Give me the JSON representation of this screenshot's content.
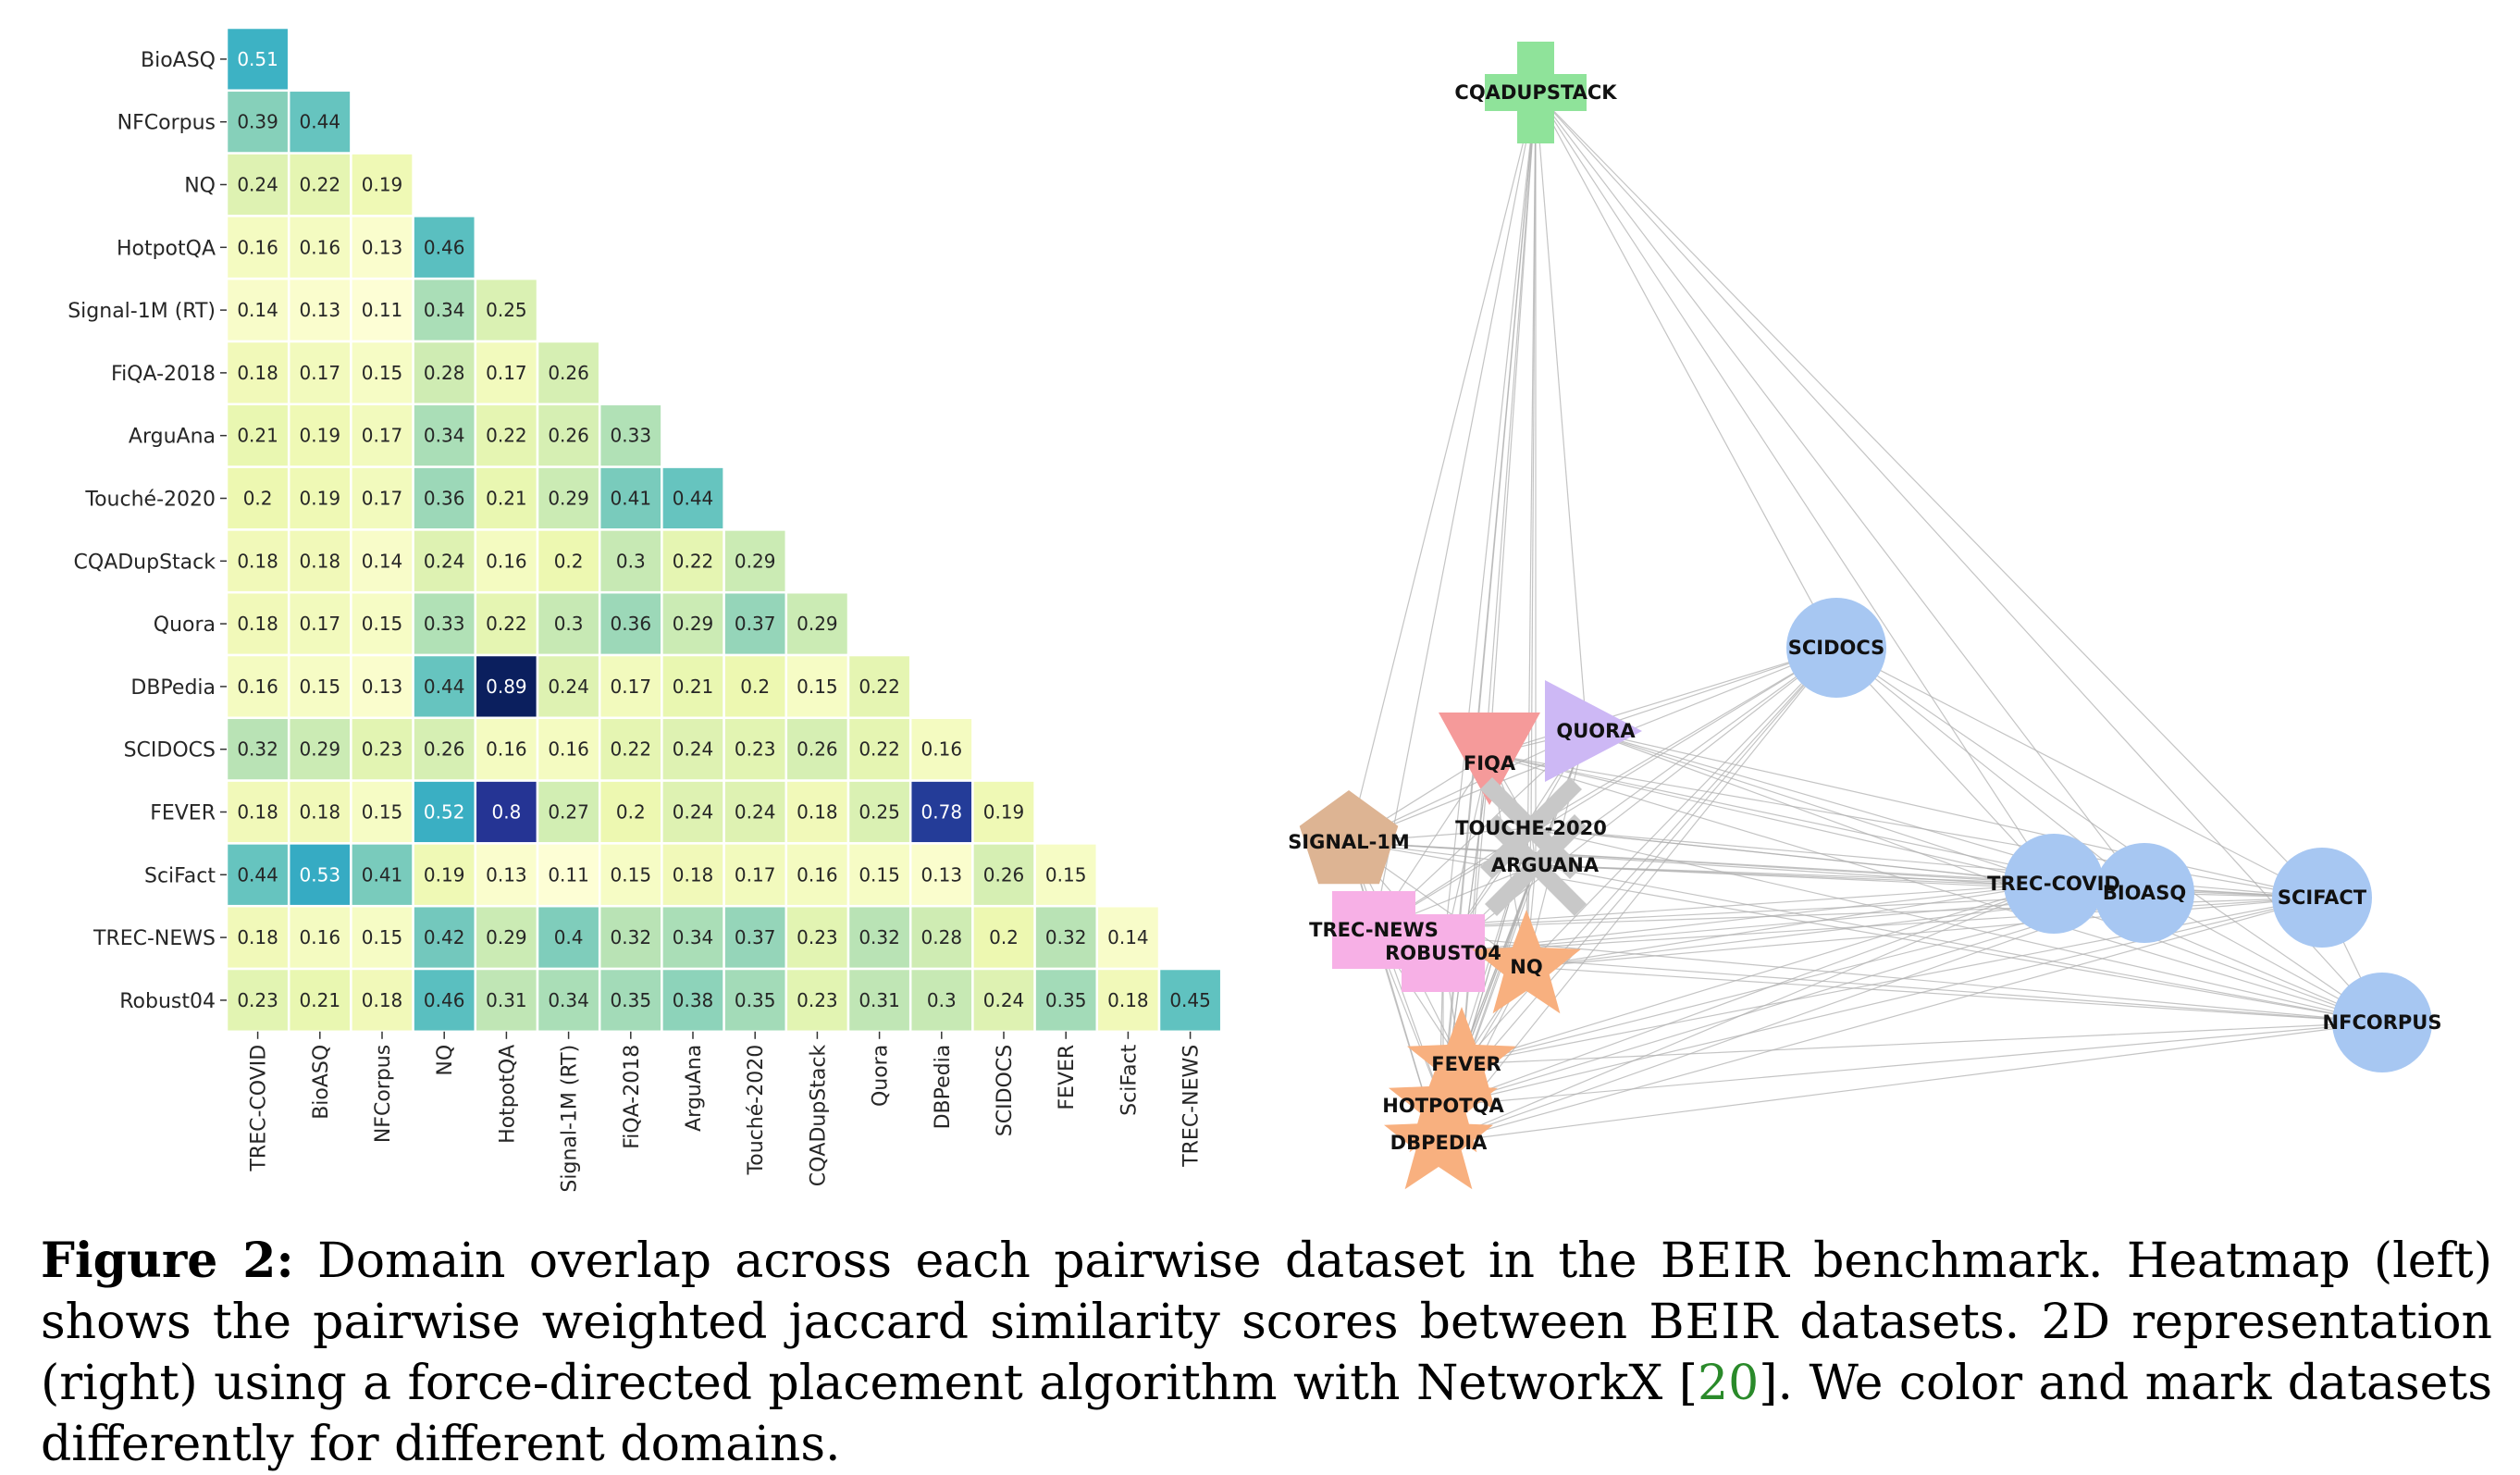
{
  "chart_data": [
    {
      "type": "heatmap",
      "description_type": "lower-triangular heatmap",
      "rows": [
        "BioASQ",
        "NFCorpus",
        "NQ",
        "HotpotQA",
        "Signal-1M (RT)",
        "FiQA-2018",
        "ArguAna",
        "Touché-2020",
        "CQADupStack",
        "Quora",
        "DBPedia",
        "SCIDOCS",
        "FEVER",
        "SciFact",
        "TREC-NEWS",
        "Robust04"
      ],
      "columns": [
        "TREC-COVID",
        "BioASQ",
        "NFCorpus",
        "NQ",
        "HotpotQA",
        "Signal-1M (RT)",
        "FiQA-2018",
        "ArguAna",
        "Touché-2020",
        "CQADupStack",
        "Quora",
        "DBPedia",
        "SCIDOCS",
        "FEVER",
        "SciFact",
        "TREC-NEWS"
      ],
      "values": [
        [
          0.51
        ],
        [
          0.39,
          0.44
        ],
        [
          0.24,
          0.22,
          0.19
        ],
        [
          0.16,
          0.16,
          0.13,
          0.46
        ],
        [
          0.14,
          0.13,
          0.11,
          0.34,
          0.25
        ],
        [
          0.18,
          0.17,
          0.15,
          0.28,
          0.17,
          0.26
        ],
        [
          0.21,
          0.19,
          0.17,
          0.34,
          0.22,
          0.26,
          0.33
        ],
        [
          0.2,
          0.19,
          0.17,
          0.36,
          0.21,
          0.29,
          0.41,
          0.44
        ],
        [
          0.18,
          0.18,
          0.14,
          0.24,
          0.16,
          0.2,
          0.3,
          0.22,
          0.29
        ],
        [
          0.18,
          0.17,
          0.15,
          0.33,
          0.22,
          0.3,
          0.36,
          0.29,
          0.37,
          0.29
        ],
        [
          0.16,
          0.15,
          0.13,
          0.44,
          0.89,
          0.24,
          0.17,
          0.21,
          0.2,
          0.15,
          0.22
        ],
        [
          0.32,
          0.29,
          0.23,
          0.26,
          0.16,
          0.16,
          0.22,
          0.24,
          0.23,
          0.26,
          0.22,
          0.16
        ],
        [
          0.18,
          0.18,
          0.15,
          0.52,
          0.8,
          0.27,
          0.2,
          0.24,
          0.24,
          0.18,
          0.25,
          0.78,
          0.19
        ],
        [
          0.44,
          0.53,
          0.41,
          0.19,
          0.13,
          0.11,
          0.15,
          0.18,
          0.17,
          0.16,
          0.15,
          0.13,
          0.26,
          0.15
        ],
        [
          0.18,
          0.16,
          0.15,
          0.42,
          0.29,
          0.4,
          0.32,
          0.34,
          0.37,
          0.23,
          0.32,
          0.28,
          0.2,
          0.32,
          0.14
        ],
        [
          0.23,
          0.21,
          0.18,
          0.46,
          0.31,
          0.34,
          0.35,
          0.38,
          0.35,
          0.23,
          0.31,
          0.3,
          0.24,
          0.35,
          0.18,
          0.45
        ]
      ],
      "colormap": "YlGnBu"
    },
    {
      "type": "network",
      "nodes": [
        {
          "id": "CQADUPSTACK",
          "shape": "plus",
          "color": "#8fe39a"
        },
        {
          "id": "SCIDOCS",
          "shape": "circle",
          "color": "#a7c7f2"
        },
        {
          "id": "FIQA",
          "shape": "triangle-down",
          "color": "#f59a9a"
        },
        {
          "id": "QUORA",
          "shape": "triangle-right",
          "color": "#cdb8f5"
        },
        {
          "id": "TOUCHE-2020",
          "shape": "x",
          "color": "#c8c8c8"
        },
        {
          "id": "ARGUANA",
          "shape": "x",
          "color": "#c8c8c8"
        },
        {
          "id": "SIGNAL-1M",
          "shape": "pentagon",
          "color": "#ddb493"
        },
        {
          "id": "TREC-NEWS",
          "shape": "square",
          "color": "#f7b0e6"
        },
        {
          "id": "ROBUST04",
          "shape": "square",
          "color": "#f7b0e6"
        },
        {
          "id": "NQ",
          "shape": "star",
          "color": "#f8b07f"
        },
        {
          "id": "FEVER",
          "shape": "star",
          "color": "#f8b07f"
        },
        {
          "id": "HOTPOTQA",
          "shape": "star",
          "color": "#f8b07f"
        },
        {
          "id": "DBPEDIA",
          "shape": "star",
          "color": "#f8b07f"
        },
        {
          "id": "TREC-COVID",
          "shape": "circle",
          "color": "#a7c7f2"
        },
        {
          "id": "BIOASQ",
          "shape": "circle",
          "color": "#a7c7f2"
        },
        {
          "id": "SCIFACT",
          "shape": "circle",
          "color": "#a7c7f2"
        },
        {
          "id": "NFCORPUS",
          "shape": "circle",
          "color": "#a7c7f2"
        }
      ],
      "edges": "all pairs",
      "edge_color": "#b0b0b0"
    }
  ],
  "caption": {
    "label": "Figure 2:",
    "part1": " Domain overlap across each pairwise dataset in the ",
    "beir1": "BEIR",
    "part2": " benchmark. Heatmap (left) shows the pairwise weighted jaccard similarity scores between ",
    "beir2": "BEIR",
    "part3": " datasets. 2D representation (right) using a force-directed placement algorithm with NetworkX [",
    "ref": "20",
    "part4": "]. We color and mark datasets differently for different domains."
  }
}
